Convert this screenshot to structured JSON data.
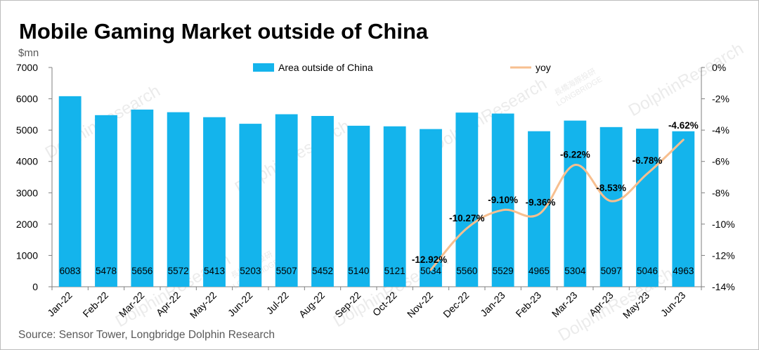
{
  "chart_data": {
    "type": "bar+line",
    "title": "Mobile Gaming Market outside of China",
    "unit_label": "$mn",
    "source": "Source: Sensor Tower, Longbridge Dolphin Research",
    "categories": [
      "Jan-22",
      "Feb-22",
      "Mar-22",
      "Apr-22",
      "May-22",
      "Jun-22",
      "Jul-22",
      "Aug-22",
      "Sep-22",
      "Oct-22",
      "Nov-22",
      "Dec-22",
      "Jan-23",
      "Feb-23",
      "Mar-23",
      "Apr-23",
      "May-23",
      "Jun-23"
    ],
    "series": [
      {
        "name": "Area outside of China",
        "type": "bar",
        "axis": "left",
        "color": "#14b4ec",
        "values": [
          6083,
          5478,
          5656,
          5572,
          5413,
          5203,
          5507,
          5452,
          5140,
          5121,
          5034,
          5560,
          5529,
          4965,
          5304,
          5097,
          5046,
          4963
        ],
        "labels": [
          "6083",
          "5478",
          "5656",
          "5572",
          "5413",
          "5203",
          "5507",
          "5452",
          "5140",
          "5121",
          "5034",
          "5560",
          "5529",
          "4965",
          "5304",
          "5097",
          "5046",
          "4963"
        ]
      },
      {
        "name": "yoy",
        "type": "line",
        "axis": "right",
        "color": "#f7bf8f",
        "values": [
          null,
          null,
          null,
          null,
          null,
          null,
          null,
          null,
          null,
          null,
          -12.92,
          -10.27,
          -9.1,
          -9.36,
          -6.22,
          -8.53,
          -6.78,
          -4.62
        ],
        "labels": [
          "",
          "",
          "",
          "",
          "",
          "",
          "",
          "",
          "",
          "",
          "-12.92%",
          "-10.27%",
          "-9.10%",
          "-9.36%",
          "-6.22%",
          "-8.53%",
          "-6.78%",
          "-4.62%"
        ]
      }
    ],
    "y_left": {
      "min": 0,
      "max": 7000,
      "ticks": [
        "0",
        "1000",
        "2000",
        "3000",
        "4000",
        "5000",
        "6000",
        "7000"
      ]
    },
    "y_right": {
      "min": -14,
      "max": 0,
      "ticks": [
        "-14%",
        "-12%",
        "-10%",
        "-8%",
        "-6%",
        "-4%",
        "-2%",
        "0%"
      ]
    },
    "grid": false,
    "legend_position": "top"
  },
  "watermark": {
    "text": "DolphinResearch",
    "brand_cn": "長橋海豚投研",
    "brand_en": "LONGBRIDGE"
  }
}
